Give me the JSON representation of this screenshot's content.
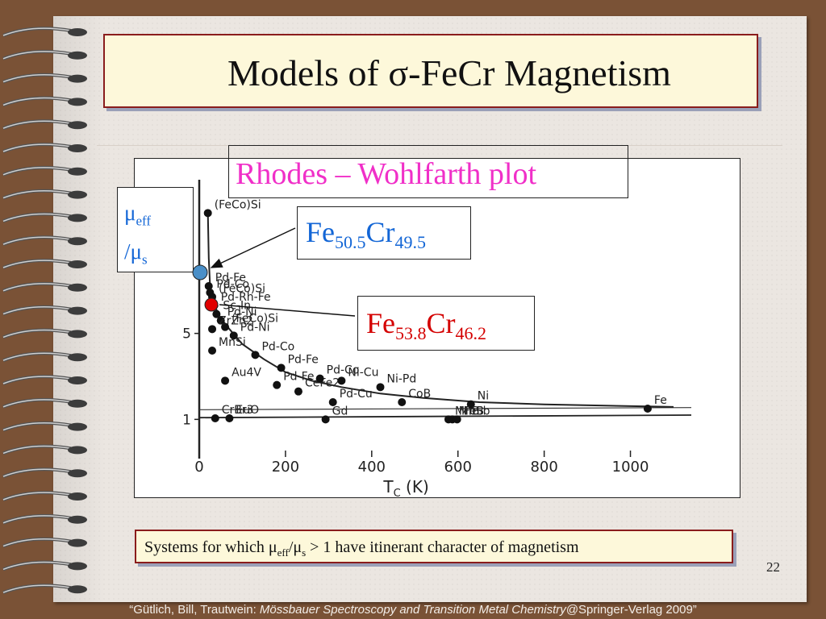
{
  "slide": {
    "title": "Models of σ-FeCr Magnetism",
    "slide_number": "22",
    "caption": {
      "prefix": "Systems for which μ",
      "sub1": "eff",
      "mid": "/μ",
      "sub2": "s",
      "suffix": " > 1 have itinerant character of magnetism"
    },
    "footer": {
      "before": "“Gütlich, Bill, Trautwein: ",
      "book": "Mössbauer Spectroscopy and Transition Metal Chemistry",
      "after": "@Springer-Verlag 2009”"
    }
  },
  "labels": {
    "rhodes_wohlfarth": "Rhodes – Wohlfarth plot",
    "mu_line1_main": "μ",
    "mu_line1_sub": "eff",
    "mu_line2_main": "/μ",
    "mu_line2_sub": "s",
    "fe1": {
      "a": "Fe",
      "a_sub": "50.5",
      "b": "Cr",
      "b_sub": "49.5",
      "color": "#1366d6"
    },
    "fe2": {
      "a": "Fe",
      "a_sub": "53.8",
      "b": "Cr",
      "b_sub": "46.2",
      "color": "#d40000"
    }
  },
  "colors": {
    "title_border": "#8a1c1c",
    "title_bg": "#fdf8da",
    "rw_text": "#f02fc8",
    "mu_text": "#1366d6",
    "marker_blue": "#4a8fc8",
    "marker_red": "#e00000"
  },
  "chart_data": {
    "type": "scatter",
    "xlabel": "T",
    "xlabel_sub": "C",
    "xlabel_unit": " (K)",
    "ylabel": "",
    "x_ticks": [
      "0",
      "200",
      "400",
      "600",
      "800",
      "1000"
    ],
    "y_ticks": [
      "1",
      "5"
    ],
    "xlim": [
      0,
      1100
    ],
    "ylim": [
      0,
      12
    ],
    "grid": false,
    "points": [
      {
        "label": "(FeCo)Si",
        "x": 20,
        "y": 10.6
      },
      {
        "label": "Pd-Fe",
        "x": 22,
        "y": 7.2
      },
      {
        "label": "Pd-Co",
        "x": 25,
        "y": 6.9
      },
      {
        "label": "(FeCo)Si",
        "x": 30,
        "y": 6.7
      },
      {
        "label": "Pd-Rh-Fe",
        "x": 35,
        "y": 6.3
      },
      {
        "label": "Sc-In",
        "x": 40,
        "y": 5.9
      },
      {
        "label": "Pd-Ni",
        "x": 50,
        "y": 5.6
      },
      {
        "label": "(FeCo)Si",
        "x": 60,
        "y": 5.3
      },
      {
        "label": "Pd-Ni",
        "x": 80,
        "y": 4.9
      },
      {
        "label": "ZrZn2",
        "x": 30,
        "y": 5.2
      },
      {
        "label": "Pd-Co",
        "x": 130,
        "y": 4.0
      },
      {
        "label": "MnSi",
        "x": 30,
        "y": 4.2
      },
      {
        "label": "Pd-Fe",
        "x": 190,
        "y": 3.4
      },
      {
        "label": "Au4V",
        "x": 60,
        "y": 2.8
      },
      {
        "label": "Pd-Fe",
        "x": 180,
        "y": 2.6
      },
      {
        "label": "CeFe2",
        "x": 230,
        "y": 2.3
      },
      {
        "label": "Pd-Co",
        "x": 280,
        "y": 2.9
      },
      {
        "label": "Ni-Cu",
        "x": 330,
        "y": 2.8
      },
      {
        "label": "Ni-Pd",
        "x": 420,
        "y": 2.5
      },
      {
        "label": "Pd-Cu",
        "x": 310,
        "y": 1.8
      },
      {
        "label": "CoB",
        "x": 470,
        "y": 1.8
      },
      {
        "label": "Ni",
        "x": 630,
        "y": 1.7
      },
      {
        "label": "Fe",
        "x": 1040,
        "y": 1.5
      },
      {
        "label": "CrBr3",
        "x": 37,
        "y": 1.05
      },
      {
        "label": "EuO",
        "x": 70,
        "y": 1.05
      },
      {
        "label": "Gd",
        "x": 293,
        "y": 1.0
      },
      {
        "label": "MnB",
        "x": 578,
        "y": 1.0
      },
      {
        "label": "MnSb",
        "x": 587,
        "y": 1.0
      },
      {
        "label": "FeB",
        "x": 598,
        "y": 1.0
      }
    ],
    "curve": [
      [
        20,
        10.6
      ],
      [
        22,
        8.5
      ],
      [
        25,
        7.2
      ],
      [
        35,
        6.3
      ],
      [
        50,
        5.7
      ],
      [
        70,
        5.2
      ],
      [
        100,
        4.5
      ],
      [
        150,
        3.8
      ],
      [
        200,
        3.2
      ],
      [
        260,
        2.8
      ],
      [
        330,
        2.5
      ],
      [
        420,
        2.2
      ],
      [
        520,
        2.0
      ],
      [
        650,
        1.8
      ],
      [
        800,
        1.7
      ],
      [
        1040,
        1.6
      ],
      [
        1100,
        1.58
      ]
    ],
    "markers": [
      {
        "name": "Fe50.5Cr49.5",
        "x": 0,
        "y": 7.8,
        "color": "#4a8fc8"
      },
      {
        "name": "Fe53.8Cr46.2",
        "x": 0,
        "y": 6.3,
        "color": "#e00000"
      }
    ]
  }
}
